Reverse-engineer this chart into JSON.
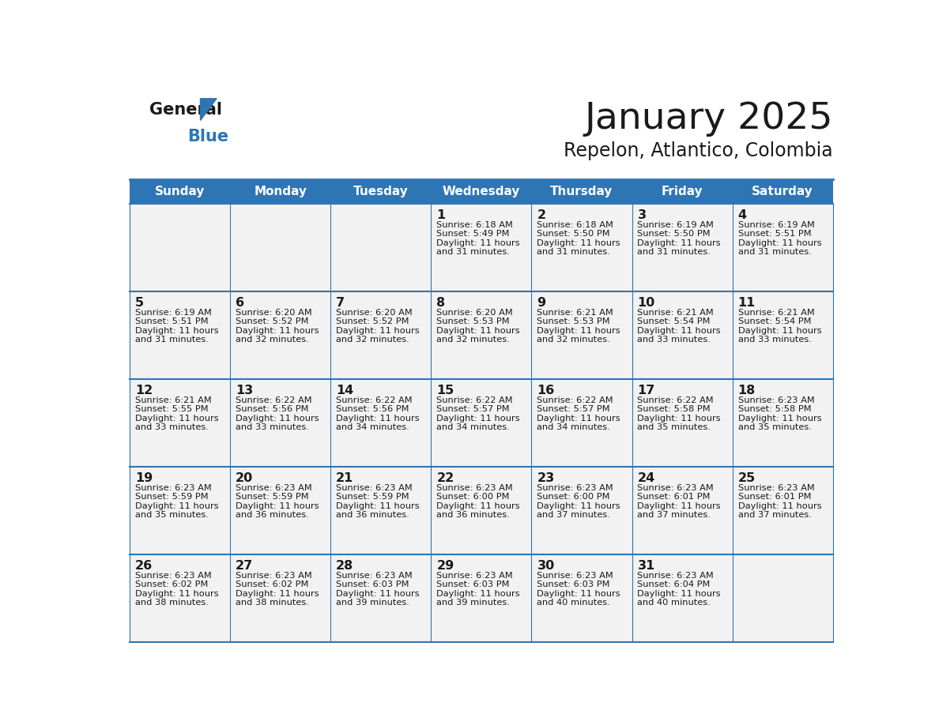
{
  "title": "January 2025",
  "subtitle": "Repelon, Atlantico, Colombia",
  "days_of_week": [
    "Sunday",
    "Monday",
    "Tuesday",
    "Wednesday",
    "Thursday",
    "Friday",
    "Saturday"
  ],
  "header_bg_color": "#2E75B6",
  "header_text_color": "#FFFFFF",
  "cell_bg_odd": "#F2F2F2",
  "cell_bg_even": "#FFFFFF",
  "border_color": "#2E75B6",
  "text_color": "#1a1a1a",
  "logo_general_color": "#1a1a1a",
  "logo_blue_color": "#2E75B6",
  "weeks": [
    [
      {
        "day": null,
        "sunrise": null,
        "sunset": null,
        "daylight_line1": null,
        "daylight_line2": null
      },
      {
        "day": null,
        "sunrise": null,
        "sunset": null,
        "daylight_line1": null,
        "daylight_line2": null
      },
      {
        "day": null,
        "sunrise": null,
        "sunset": null,
        "daylight_line1": null,
        "daylight_line2": null
      },
      {
        "day": 1,
        "sunrise": "6:18 AM",
        "sunset": "5:49 PM",
        "daylight_line1": "Daylight: 11 hours",
        "daylight_line2": "and 31 minutes."
      },
      {
        "day": 2,
        "sunrise": "6:18 AM",
        "sunset": "5:50 PM",
        "daylight_line1": "Daylight: 11 hours",
        "daylight_line2": "and 31 minutes."
      },
      {
        "day": 3,
        "sunrise": "6:19 AM",
        "sunset": "5:50 PM",
        "daylight_line1": "Daylight: 11 hours",
        "daylight_line2": "and 31 minutes."
      },
      {
        "day": 4,
        "sunrise": "6:19 AM",
        "sunset": "5:51 PM",
        "daylight_line1": "Daylight: 11 hours",
        "daylight_line2": "and 31 minutes."
      }
    ],
    [
      {
        "day": 5,
        "sunrise": "6:19 AM",
        "sunset": "5:51 PM",
        "daylight_line1": "Daylight: 11 hours",
        "daylight_line2": "and 31 minutes."
      },
      {
        "day": 6,
        "sunrise": "6:20 AM",
        "sunset": "5:52 PM",
        "daylight_line1": "Daylight: 11 hours",
        "daylight_line2": "and 32 minutes."
      },
      {
        "day": 7,
        "sunrise": "6:20 AM",
        "sunset": "5:52 PM",
        "daylight_line1": "Daylight: 11 hours",
        "daylight_line2": "and 32 minutes."
      },
      {
        "day": 8,
        "sunrise": "6:20 AM",
        "sunset": "5:53 PM",
        "daylight_line1": "Daylight: 11 hours",
        "daylight_line2": "and 32 minutes."
      },
      {
        "day": 9,
        "sunrise": "6:21 AM",
        "sunset": "5:53 PM",
        "daylight_line1": "Daylight: 11 hours",
        "daylight_line2": "and 32 minutes."
      },
      {
        "day": 10,
        "sunrise": "6:21 AM",
        "sunset": "5:54 PM",
        "daylight_line1": "Daylight: 11 hours",
        "daylight_line2": "and 33 minutes."
      },
      {
        "day": 11,
        "sunrise": "6:21 AM",
        "sunset": "5:54 PM",
        "daylight_line1": "Daylight: 11 hours",
        "daylight_line2": "and 33 minutes."
      }
    ],
    [
      {
        "day": 12,
        "sunrise": "6:21 AM",
        "sunset": "5:55 PM",
        "daylight_line1": "Daylight: 11 hours",
        "daylight_line2": "and 33 minutes."
      },
      {
        "day": 13,
        "sunrise": "6:22 AM",
        "sunset": "5:56 PM",
        "daylight_line1": "Daylight: 11 hours",
        "daylight_line2": "and 33 minutes."
      },
      {
        "day": 14,
        "sunrise": "6:22 AM",
        "sunset": "5:56 PM",
        "daylight_line1": "Daylight: 11 hours",
        "daylight_line2": "and 34 minutes."
      },
      {
        "day": 15,
        "sunrise": "6:22 AM",
        "sunset": "5:57 PM",
        "daylight_line1": "Daylight: 11 hours",
        "daylight_line2": "and 34 minutes."
      },
      {
        "day": 16,
        "sunrise": "6:22 AM",
        "sunset": "5:57 PM",
        "daylight_line1": "Daylight: 11 hours",
        "daylight_line2": "and 34 minutes."
      },
      {
        "day": 17,
        "sunrise": "6:22 AM",
        "sunset": "5:58 PM",
        "daylight_line1": "Daylight: 11 hours",
        "daylight_line2": "and 35 minutes."
      },
      {
        "day": 18,
        "sunrise": "6:23 AM",
        "sunset": "5:58 PM",
        "daylight_line1": "Daylight: 11 hours",
        "daylight_line2": "and 35 minutes."
      }
    ],
    [
      {
        "day": 19,
        "sunrise": "6:23 AM",
        "sunset": "5:59 PM",
        "daylight_line1": "Daylight: 11 hours",
        "daylight_line2": "and 35 minutes."
      },
      {
        "day": 20,
        "sunrise": "6:23 AM",
        "sunset": "5:59 PM",
        "daylight_line1": "Daylight: 11 hours",
        "daylight_line2": "and 36 minutes."
      },
      {
        "day": 21,
        "sunrise": "6:23 AM",
        "sunset": "5:59 PM",
        "daylight_line1": "Daylight: 11 hours",
        "daylight_line2": "and 36 minutes."
      },
      {
        "day": 22,
        "sunrise": "6:23 AM",
        "sunset": "6:00 PM",
        "daylight_line1": "Daylight: 11 hours",
        "daylight_line2": "and 36 minutes."
      },
      {
        "day": 23,
        "sunrise": "6:23 AM",
        "sunset": "6:00 PM",
        "daylight_line1": "Daylight: 11 hours",
        "daylight_line2": "and 37 minutes."
      },
      {
        "day": 24,
        "sunrise": "6:23 AM",
        "sunset": "6:01 PM",
        "daylight_line1": "Daylight: 11 hours",
        "daylight_line2": "and 37 minutes."
      },
      {
        "day": 25,
        "sunrise": "6:23 AM",
        "sunset": "6:01 PM",
        "daylight_line1": "Daylight: 11 hours",
        "daylight_line2": "and 37 minutes."
      }
    ],
    [
      {
        "day": 26,
        "sunrise": "6:23 AM",
        "sunset": "6:02 PM",
        "daylight_line1": "Daylight: 11 hours",
        "daylight_line2": "and 38 minutes."
      },
      {
        "day": 27,
        "sunrise": "6:23 AM",
        "sunset": "6:02 PM",
        "daylight_line1": "Daylight: 11 hours",
        "daylight_line2": "and 38 minutes."
      },
      {
        "day": 28,
        "sunrise": "6:23 AM",
        "sunset": "6:03 PM",
        "daylight_line1": "Daylight: 11 hours",
        "daylight_line2": "and 39 minutes."
      },
      {
        "day": 29,
        "sunrise": "6:23 AM",
        "sunset": "6:03 PM",
        "daylight_line1": "Daylight: 11 hours",
        "daylight_line2": "and 39 minutes."
      },
      {
        "day": 30,
        "sunrise": "6:23 AM",
        "sunset": "6:03 PM",
        "daylight_line1": "Daylight: 11 hours",
        "daylight_line2": "and 40 minutes."
      },
      {
        "day": 31,
        "sunrise": "6:23 AM",
        "sunset": "6:04 PM",
        "daylight_line1": "Daylight: 11 hours",
        "daylight_line2": "and 40 minutes."
      },
      {
        "day": null,
        "sunrise": null,
        "sunset": null,
        "daylight_line1": null,
        "daylight_line2": null
      }
    ]
  ]
}
